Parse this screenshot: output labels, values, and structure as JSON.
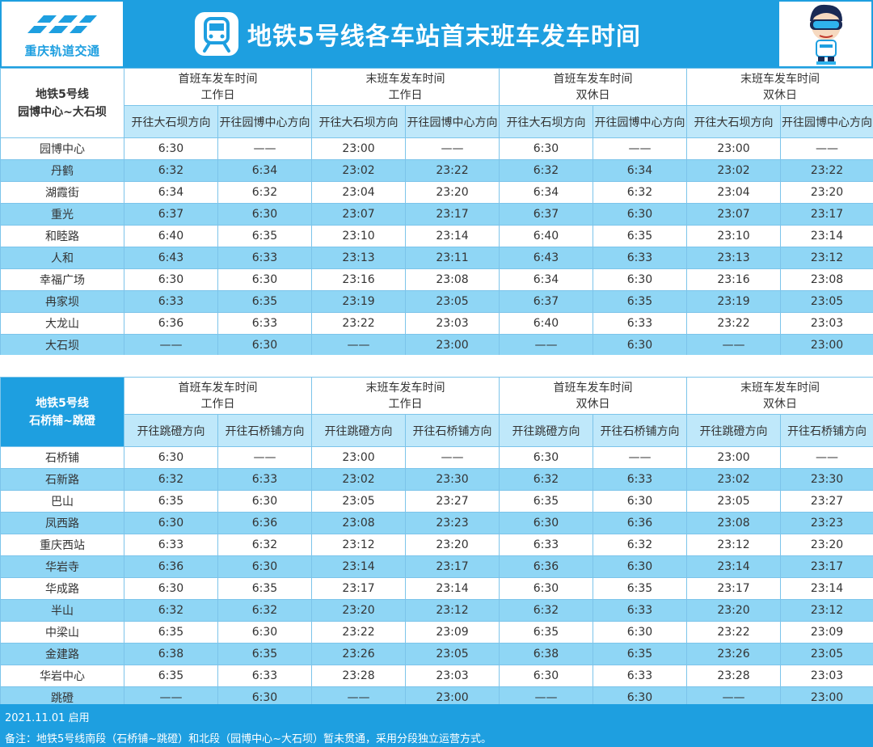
{
  "header": {
    "logo_text": "重庆轨道交通",
    "logo_icon": "crt-logo-icon",
    "metro_icon": "metro-train-icon",
    "title": "地铁5号线各车站首末班车发车时间",
    "mascot_icon": "mascot-icon"
  },
  "colors": {
    "primary": "#1e9fe0",
    "row_alt": "#8fd6f5",
    "dir_header": "#bfe8fa"
  },
  "north": {
    "line_name": [
      "地铁5号线",
      "园博中心~大石坝"
    ],
    "groups": [
      [
        "首班车发车时间",
        "工作日"
      ],
      [
        "末班车发车时间",
        "工作日"
      ],
      [
        "首班车发车时间",
        "双休日"
      ],
      [
        "末班车发车时间",
        "双休日"
      ]
    ],
    "directions": [
      "开往大石坝方向",
      "开往园博中心方向"
    ],
    "rows": [
      [
        "园博中心",
        "6:30",
        "——",
        "23:00",
        "——",
        "6:30",
        "——",
        "23:00",
        "——"
      ],
      [
        "丹鹤",
        "6:32",
        "6:34",
        "23:02",
        "23:22",
        "6:32",
        "6:34",
        "23:02",
        "23:22"
      ],
      [
        "湖霞街",
        "6:34",
        "6:32",
        "23:04",
        "23:20",
        "6:34",
        "6:32",
        "23:04",
        "23:20"
      ],
      [
        "重光",
        "6:37",
        "6:30",
        "23:07",
        "23:17",
        "6:37",
        "6:30",
        "23:07",
        "23:17"
      ],
      [
        "和睦路",
        "6:40",
        "6:35",
        "23:10",
        "23:14",
        "6:40",
        "6:35",
        "23:10",
        "23:14"
      ],
      [
        "人和",
        "6:43",
        "6:33",
        "23:13",
        "23:11",
        "6:43",
        "6:33",
        "23:13",
        "23:12"
      ],
      [
        "幸福广场",
        "6:30",
        "6:30",
        "23:16",
        "23:08",
        "6:34",
        "6:30",
        "23:16",
        "23:08"
      ],
      [
        "冉家坝",
        "6:33",
        "6:35",
        "23:19",
        "23:05",
        "6:37",
        "6:35",
        "23:19",
        "23:05"
      ],
      [
        "大龙山",
        "6:36",
        "6:33",
        "23:22",
        "23:03",
        "6:40",
        "6:33",
        "23:22",
        "23:03"
      ],
      [
        "大石坝",
        "——",
        "6:30",
        "——",
        "23:00",
        "——",
        "6:30",
        "——",
        "23:00"
      ]
    ]
  },
  "south": {
    "line_name": [
      "地铁5号线",
      "石桥铺~跳磴"
    ],
    "groups": [
      [
        "首班车发车时间",
        "工作日"
      ],
      [
        "末班车发车时间",
        "工作日"
      ],
      [
        "首班车发车时间",
        "双休日"
      ],
      [
        "末班车发车时间",
        "双休日"
      ]
    ],
    "directions": [
      "开往跳磴方向",
      "开往石桥铺方向"
    ],
    "rows": [
      [
        "石桥铺",
        "6:30",
        "——",
        "23:00",
        "——",
        "6:30",
        "——",
        "23:00",
        "——"
      ],
      [
        "石新路",
        "6:32",
        "6:33",
        "23:02",
        "23:30",
        "6:32",
        "6:33",
        "23:02",
        "23:30"
      ],
      [
        "巴山",
        "6:35",
        "6:30",
        "23:05",
        "23:27",
        "6:35",
        "6:30",
        "23:05",
        "23:27"
      ],
      [
        "凤西路",
        "6:30",
        "6:36",
        "23:08",
        "23:23",
        "6:30",
        "6:36",
        "23:08",
        "23:23"
      ],
      [
        "重庆西站",
        "6:33",
        "6:32",
        "23:12",
        "23:20",
        "6:33",
        "6:32",
        "23:12",
        "23:20"
      ],
      [
        "华岩寺",
        "6:36",
        "6:30",
        "23:14",
        "23:17",
        "6:36",
        "6:30",
        "23:14",
        "23:17"
      ],
      [
        "华成路",
        "6:30",
        "6:35",
        "23:17",
        "23:14",
        "6:30",
        "6:35",
        "23:17",
        "23:14"
      ],
      [
        "半山",
        "6:32",
        "6:32",
        "23:20",
        "23:12",
        "6:32",
        "6:33",
        "23:20",
        "23:12"
      ],
      [
        "中梁山",
        "6:35",
        "6:30",
        "23:22",
        "23:09",
        "6:35",
        "6:30",
        "23:22",
        "23:09"
      ],
      [
        "金建路",
        "6:38",
        "6:35",
        "23:26",
        "23:05",
        "6:38",
        "6:35",
        "23:26",
        "23:05"
      ],
      [
        "华岩中心",
        "6:35",
        "6:33",
        "23:28",
        "23:03",
        "6:30",
        "6:33",
        "23:28",
        "23:03"
      ],
      [
        "跳磴",
        "——",
        "6:30",
        "——",
        "23:00",
        "——",
        "6:30",
        "——",
        "23:00"
      ]
    ]
  },
  "footer": {
    "enabled": "2021.11.01 启用",
    "note": "备注：地铁5号线南段（石桥铺~跳磴）和北段（园博中心~大石坝）暂未贯通，采用分段独立运营方式。"
  }
}
